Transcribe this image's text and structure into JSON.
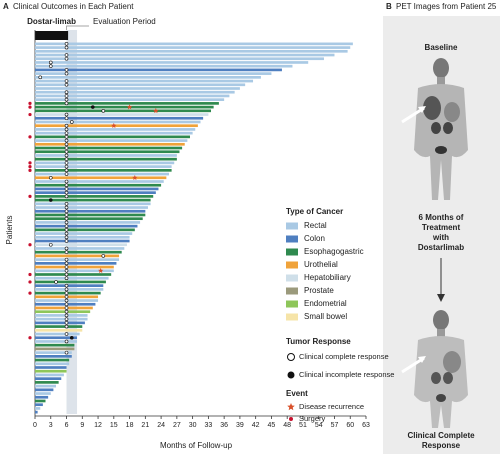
{
  "chart_data": {
    "type": "swimmer",
    "panel": "A",
    "title": "Clinical Outcomes in Each Patient",
    "x_label": "Months of Follow-up",
    "y_label": "Patients",
    "xlim": [
      0,
      63
    ],
    "xticks": [
      0,
      3,
      6,
      9,
      12,
      15,
      18,
      21,
      24,
      27,
      30,
      33,
      36,
      39,
      42,
      45,
      48,
      51,
      54,
      57,
      60,
      63
    ],
    "treatment_label": "Dostar-limab",
    "treatment_months": [
      0,
      6.3
    ],
    "evaluation_label": "Evaluation Period",
    "evaluation_months": [
      6,
      8
    ],
    "cancer_title": "Type of Cancer",
    "cancer_types": [
      {
        "name": "Rectal",
        "color": "#a9c9e4"
      },
      {
        "name": "Colon",
        "color": "#4f7fc0"
      },
      {
        "name": "Esophagogastric",
        "color": "#2f8a4f"
      },
      {
        "name": "Urothelial",
        "color": "#f0a33a"
      },
      {
        "name": "Hepatobiliary",
        "color": "#cfdfe9"
      },
      {
        "name": "Prostate",
        "color": "#9b9a7c"
      },
      {
        "name": "Endometrial",
        "color": "#8ec65a"
      },
      {
        "name": "Small bowel",
        "color": "#f6e4a8"
      }
    ],
    "response_title": "Tumor Response",
    "complete_label": "Clinical complete response",
    "incomplete_label": "Clinical incomplete response",
    "event_title": "Event",
    "recurrence_label": "Disease recurrence",
    "recurrence_color": "#d9502a",
    "surgery_label": "Surgery",
    "surgery_color": "#c8102e",
    "patients": [
      {
        "months": 60.5,
        "cancer": "Rectal",
        "complete": 6
      },
      {
        "months": 60,
        "cancer": "Rectal",
        "complete": 6
      },
      {
        "months": 59.5,
        "cancer": "Rectal"
      },
      {
        "months": 57,
        "cancer": "Rectal",
        "complete": 6
      },
      {
        "months": 55,
        "cancer": "Rectal",
        "complete": 6
      },
      {
        "months": 52,
        "cancer": "Rectal",
        "complete": 3
      },
      {
        "months": 49,
        "cancer": "Rectal",
        "complete": 3
      },
      {
        "months": 47,
        "cancer": "Colon",
        "complete": 6
      },
      {
        "months": 45,
        "cancer": "Rectal",
        "complete": 6
      },
      {
        "months": 43,
        "cancer": "Rectal",
        "complete": 1
      },
      {
        "months": 41.5,
        "cancer": "Rectal",
        "complete": 6
      },
      {
        "months": 40,
        "cancer": "Rectal",
        "complete": 6
      },
      {
        "months": 39,
        "cancer": "Rectal"
      },
      {
        "months": 38,
        "cancer": "Rectal",
        "complete": 6
      },
      {
        "months": 37,
        "cancer": "Rectal",
        "complete": 6
      },
      {
        "months": 36,
        "cancer": "Rectal",
        "complete": 6
      },
      {
        "months": 35,
        "cancer": "Esophagogastric",
        "complete": 6,
        "surgery": true
      },
      {
        "months": 34,
        "cancer": "Esophagogastric",
        "incomplete": 11,
        "recurrence": 18,
        "surgery": true
      },
      {
        "months": 33.5,
        "cancer": "Esophagogastric",
        "complete": 13,
        "recurrence": 23
      },
      {
        "months": 33,
        "cancer": "Hepatobiliary",
        "complete": 6,
        "surgery": true
      },
      {
        "months": 32,
        "cancer": "Colon",
        "complete": 6
      },
      {
        "months": 31.5,
        "cancer": "Rectal",
        "complete": 7
      },
      {
        "months": 31,
        "cancer": "Urothelial",
        "complete": 6,
        "recurrence": 15
      },
      {
        "months": 30.5,
        "cancer": "Rectal",
        "complete": 6
      },
      {
        "months": 30,
        "cancer": "Rectal",
        "complete": 6
      },
      {
        "months": 29.5,
        "cancer": "Esophagogastric",
        "complete": 6,
        "surgery": true
      },
      {
        "months": 29,
        "cancer": "Rectal",
        "complete": 6
      },
      {
        "months": 28.5,
        "cancer": "Urothelial",
        "complete": 6
      },
      {
        "months": 28,
        "cancer": "Esophagogastric",
        "complete": 6
      },
      {
        "months": 27.5,
        "cancer": "Esophagogastric",
        "complete": 6
      },
      {
        "months": 27,
        "cancer": "Rectal",
        "complete": 6
      },
      {
        "months": 27,
        "cancer": "Esophagogastric",
        "complete": 6
      },
      {
        "months": 26.5,
        "cancer": "Rectal",
        "complete": 6,
        "surgery": true
      },
      {
        "months": 26,
        "cancer": "Rectal",
        "complete": 6,
        "surgery": true
      },
      {
        "months": 26,
        "cancer": "Esophagogastric",
        "complete": 6,
        "surgery": true
      },
      {
        "months": 25.5,
        "cancer": "Rectal",
        "complete": 6
      },
      {
        "months": 25,
        "cancer": "Urothelial",
        "complete": 3,
        "recurrence": 19
      },
      {
        "months": 24.5,
        "cancer": "Rectal",
        "complete": 6
      },
      {
        "months": 24,
        "cancer": "Esophagogastric",
        "complete": 6
      },
      {
        "months": 23.5,
        "cancer": "Colon",
        "complete": 6
      },
      {
        "months": 23,
        "cancer": "Colon",
        "complete": 6
      },
      {
        "months": 22.5,
        "cancer": "Esophagogastric",
        "complete": 6,
        "surgery": true
      },
      {
        "months": 22,
        "cancer": "Esophagogastric",
        "incomplete": 3
      },
      {
        "months": 22,
        "cancer": "Rectal",
        "complete": 6
      },
      {
        "months": 21.5,
        "cancer": "Rectal",
        "complete": 6
      },
      {
        "months": 21,
        "cancer": "Colon",
        "complete": 6
      },
      {
        "months": 21,
        "cancer": "Esophagogastric",
        "complete": 6
      },
      {
        "months": 20.5,
        "cancer": "Esophagogastric",
        "complete": 6
      },
      {
        "months": 20,
        "cancer": "Rectal",
        "complete": 6
      },
      {
        "months": 19.5,
        "cancer": "Colon",
        "complete": 6
      },
      {
        "months": 19,
        "cancer": "Esophagogastric",
        "complete": 6
      },
      {
        "months": 18.5,
        "cancer": "Rectal",
        "complete": 6
      },
      {
        "months": 18,
        "cancer": "Rectal",
        "complete": 6
      },
      {
        "months": 18,
        "cancer": "Colon",
        "complete": 6
      },
      {
        "months": 17.5,
        "cancer": "Hepatobiliary",
        "complete": 3,
        "surgery": true
      },
      {
        "months": 17,
        "cancer": "Rectal",
        "complete": 6
      },
      {
        "months": 16.5,
        "cancer": "Esophagogastric",
        "complete": 6
      },
      {
        "months": 16,
        "cancer": "Urothelial",
        "complete": 13
      },
      {
        "months": 16,
        "cancer": "Rectal",
        "complete": 6
      },
      {
        "months": 15.5,
        "cancer": "Colon",
        "complete": 6
      },
      {
        "months": 15,
        "cancer": "Urothelial",
        "complete": 6
      },
      {
        "months": 15,
        "cancer": "Rectal",
        "complete": 6,
        "recurrence": 12.5
      },
      {
        "months": 14.5,
        "cancer": "Esophagogastric",
        "complete": 6,
        "surgery": true
      },
      {
        "months": 14,
        "cancer": "Rectal",
        "complete": 6
      },
      {
        "months": 13.5,
        "cancer": "Esophagogastric",
        "complete": 4,
        "surgery": true
      },
      {
        "months": 13,
        "cancer": "Colon",
        "complete": 6
      },
      {
        "months": 13,
        "cancer": "Rectal",
        "complete": 6
      },
      {
        "months": 12.5,
        "cancer": "Esophagogastric",
        "complete": 6,
        "surgery": true
      },
      {
        "months": 12,
        "cancer": "Urothelial",
        "complete": 6
      },
      {
        "months": 12,
        "cancer": "Rectal",
        "complete": 6
      },
      {
        "months": 11.5,
        "cancer": "Colon",
        "complete": 6
      },
      {
        "months": 11,
        "cancer": "Urothelial",
        "complete": 6
      },
      {
        "months": 10.5,
        "cancer": "Endometrial",
        "complete": 6
      },
      {
        "months": 10,
        "cancer": "Rectal",
        "complete": 6
      },
      {
        "months": 10,
        "cancer": "Rectal",
        "complete": 6
      },
      {
        "months": 9.5,
        "cancer": "Colon",
        "complete": 6
      },
      {
        "months": 9,
        "cancer": "Esophagogastric",
        "complete": 6
      },
      {
        "months": 9,
        "cancer": "Small bowel"
      },
      {
        "months": 8.5,
        "cancer": "Rectal",
        "complete": 6
      },
      {
        "months": 8,
        "cancer": "Colon",
        "incomplete": 7,
        "surgery": true
      },
      {
        "months": 8,
        "cancer": "Rectal",
        "complete": 6
      },
      {
        "months": 7.5,
        "cancer": "Esophagogastric"
      },
      {
        "months": 7.5,
        "cancer": "Prostate"
      },
      {
        "months": 7,
        "cancer": "Rectal",
        "complete": 6
      },
      {
        "months": 7,
        "cancer": "Colon"
      },
      {
        "months": 6.5,
        "cancer": "Esophagogastric"
      },
      {
        "months": 6.5,
        "cancer": "Rectal"
      },
      {
        "months": 6,
        "cancer": "Colon"
      },
      {
        "months": 6,
        "cancer": "Endometrial"
      },
      {
        "months": 5.5,
        "cancer": "Rectal"
      },
      {
        "months": 5,
        "cancer": "Colon"
      },
      {
        "months": 4.5,
        "cancer": "Esophagogastric"
      },
      {
        "months": 4,
        "cancer": "Rectal"
      },
      {
        "months": 3.5,
        "cancer": "Colon"
      },
      {
        "months": 3,
        "cancer": "Rectal"
      },
      {
        "months": 2.5,
        "cancer": "Colon"
      },
      {
        "months": 2,
        "cancer": "Esophagogastric"
      },
      {
        "months": 1.5,
        "cancer": "Colon"
      },
      {
        "months": 1,
        "cancer": "Rectal"
      },
      {
        "months": 0.5,
        "cancer": "Colon"
      }
    ]
  },
  "panel_b": {
    "panel": "B",
    "title": "PET Images from Patient 25",
    "top_label": "Baseline",
    "middle_label": [
      "6 Months of",
      "Treatment",
      "with",
      "Dostarlimab"
    ],
    "bottom_label": [
      "Clinical Complete",
      "Response"
    ]
  }
}
